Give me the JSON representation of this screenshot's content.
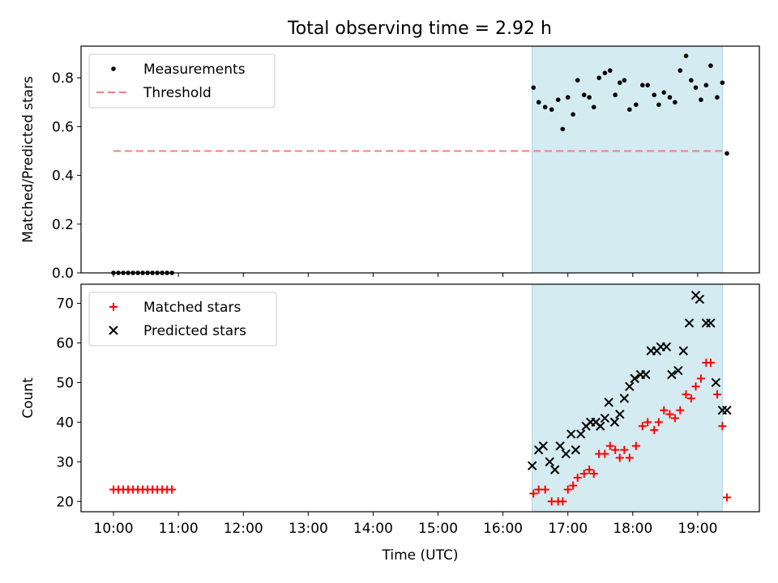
{
  "title": "Total observing time = 2.92 h",
  "chart_data": [
    {
      "type": "scatter",
      "ylabel": "Matched/Predicted stars",
      "xlabel": "",
      "xlim": [
        9.5,
        19.95
      ],
      "ylim": [
        0.0,
        0.93
      ],
      "x_ticks": [
        10,
        11,
        12,
        13,
        14,
        15,
        16,
        17,
        18,
        19
      ],
      "y_ticks": [
        0.0,
        0.2,
        0.4,
        0.6,
        0.8
      ],
      "y_tick_labels": [
        "0.0",
        "0.2",
        "0.4",
        "0.6",
        "0.8"
      ],
      "shaded_span": [
        16.45,
        19.38
      ],
      "shaded_color": "#d4ebf1",
      "legend_position": "upper-left",
      "series": [
        {
          "name": "Measurements",
          "kind": "dots",
          "color": "#000000",
          "x": [
            10.0,
            10.075,
            10.15,
            10.225,
            10.3,
            10.375,
            10.45,
            10.525,
            10.6,
            10.675,
            10.75,
            10.825,
            10.9,
            16.47,
            16.55,
            16.65,
            16.75,
            16.85,
            16.92,
            17.0,
            17.08,
            17.15,
            17.25,
            17.33,
            17.4,
            17.48,
            17.57,
            17.65,
            17.73,
            17.8,
            17.87,
            17.95,
            18.05,
            18.15,
            18.23,
            18.33,
            18.4,
            18.48,
            18.57,
            18.65,
            18.73,
            18.82,
            18.9,
            18.97,
            19.05,
            19.13,
            19.2,
            19.3,
            19.38,
            19.45
          ],
          "y": [
            0.0,
            0.0,
            0.0,
            0.0,
            0.0,
            0.0,
            0.0,
            0.0,
            0.0,
            0.0,
            0.0,
            0.0,
            0.0,
            0.76,
            0.7,
            0.68,
            0.67,
            0.71,
            0.59,
            0.72,
            0.65,
            0.79,
            0.73,
            0.72,
            0.68,
            0.8,
            0.82,
            0.83,
            0.73,
            0.78,
            0.79,
            0.67,
            0.69,
            0.77,
            0.77,
            0.73,
            0.69,
            0.74,
            0.72,
            0.7,
            0.83,
            0.89,
            0.79,
            0.76,
            0.71,
            0.77,
            0.85,
            0.72,
            0.78,
            0.49
          ]
        },
        {
          "name": "Threshold",
          "kind": "dashed-line",
          "color": "#f08080",
          "x": [
            10.0,
            19.45
          ],
          "y": [
            0.5,
            0.5
          ]
        }
      ]
    },
    {
      "type": "scatter",
      "ylabel": "Count",
      "xlabel": "Time (UTC)",
      "xlim": [
        9.5,
        19.95
      ],
      "ylim": [
        17.4,
        74.8
      ],
      "x_ticks": [
        10,
        11,
        12,
        13,
        14,
        15,
        16,
        17,
        18,
        19
      ],
      "x_tick_labels": [
        "10:00",
        "11:00",
        "12:00",
        "13:00",
        "14:00",
        "15:00",
        "16:00",
        "17:00",
        "18:00",
        "19:00"
      ],
      "y_ticks": [
        20,
        30,
        40,
        50,
        60,
        70
      ],
      "y_tick_labels": [
        "20",
        "30",
        "40",
        "50",
        "60",
        "70"
      ],
      "shaded_span": [
        16.45,
        19.38
      ],
      "shaded_color": "#d4ebf1",
      "legend_position": "upper-left",
      "series": [
        {
          "name": "Matched stars",
          "kind": "plus",
          "color": "#ff0000",
          "x": [
            10.0,
            10.075,
            10.15,
            10.225,
            10.3,
            10.375,
            10.45,
            10.525,
            10.6,
            10.675,
            10.75,
            10.825,
            10.9,
            16.47,
            16.55,
            16.65,
            16.75,
            16.85,
            16.92,
            17.0,
            17.08,
            17.15,
            17.25,
            17.33,
            17.4,
            17.48,
            17.57,
            17.65,
            17.73,
            17.8,
            17.87,
            17.95,
            18.05,
            18.15,
            18.23,
            18.33,
            18.4,
            18.48,
            18.57,
            18.65,
            18.73,
            18.82,
            18.9,
            18.97,
            19.05,
            19.13,
            19.2,
            19.3,
            19.38,
            19.45
          ],
          "y": [
            23,
            23,
            23,
            23,
            23,
            23,
            23,
            23,
            23,
            23,
            23,
            23,
            23,
            22,
            23,
            23,
            20,
            20,
            20,
            23,
            24,
            26,
            27,
            28,
            27,
            32,
            32,
            34,
            33,
            31,
            33,
            31,
            34,
            39,
            40,
            38,
            40,
            43,
            42,
            41,
            43,
            47,
            46,
            49,
            51,
            55,
            55,
            47,
            39,
            21
          ]
        },
        {
          "name": "Predicted stars",
          "kind": "cross",
          "color": "#000000",
          "x": [
            16.45,
            16.55,
            16.62,
            16.72,
            16.8,
            16.88,
            16.97,
            17.05,
            17.12,
            17.2,
            17.28,
            17.35,
            17.43,
            17.5,
            17.57,
            17.63,
            17.72,
            17.8,
            17.87,
            17.95,
            18.03,
            18.12,
            18.2,
            18.28,
            18.37,
            18.43,
            18.52,
            18.6,
            18.7,
            18.78,
            18.87,
            18.97,
            19.03,
            19.13,
            19.2,
            19.28,
            19.38,
            19.45
          ],
          "y": [
            29,
            33,
            34,
            30,
            28,
            34,
            32,
            37,
            33,
            37,
            39,
            40,
            40,
            39,
            41,
            45,
            40,
            42,
            46,
            49,
            51,
            52,
            52,
            58,
            58,
            59,
            59,
            52,
            53,
            58,
            65,
            72,
            71,
            65,
            65,
            50,
            43,
            43
          ]
        }
      ]
    }
  ]
}
